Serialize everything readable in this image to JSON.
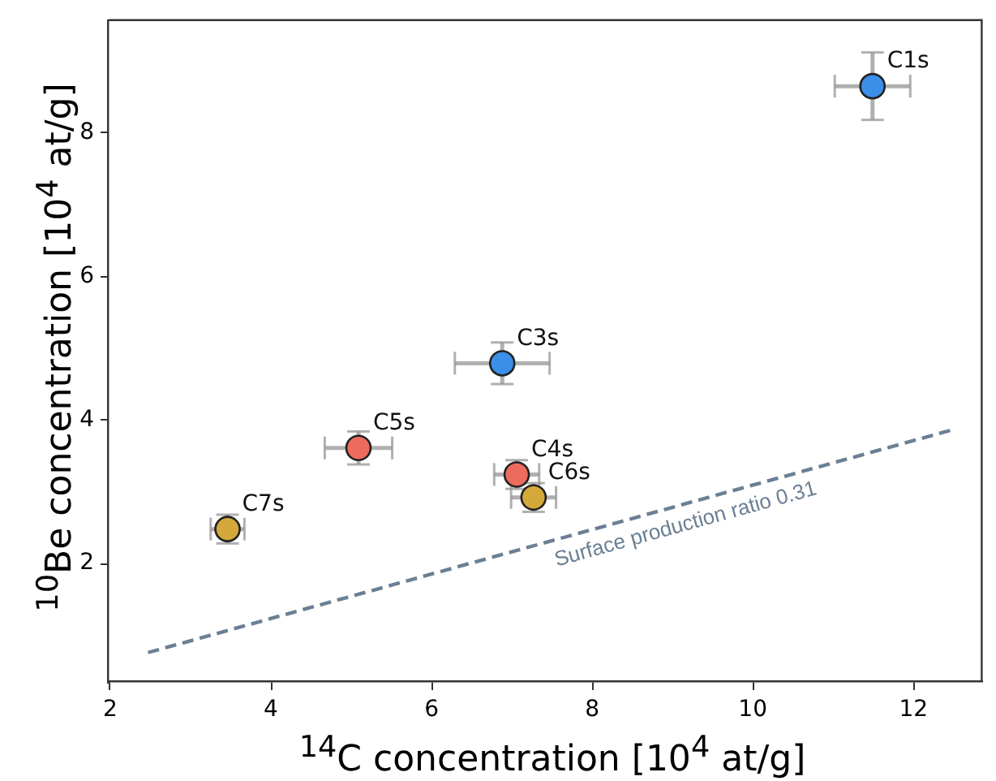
{
  "chart_data": {
    "type": "scatter",
    "xlabel": "$^{14}$C concentration [10$^{4}$ at/g]",
    "ylabel": "$^{10}$Be concentration [10$^{4}$ at/g]",
    "xlim": [
      1.98,
      12.85
    ],
    "ylim": [
      0.35,
      9.57
    ],
    "xticks": [
      2,
      4,
      6,
      8,
      10,
      12
    ],
    "yticks": [
      2,
      4,
      6,
      8
    ],
    "grid": false,
    "legend": false,
    "marker": "circle",
    "series": [
      {
        "name": "C1s",
        "color": "#3b8fe8",
        "x": [
          11.49
        ],
        "values": [
          8.65
        ],
        "errors": [
          0.47
        ],
        "xerrors": [
          0.47
        ]
      },
      {
        "name": "C3s",
        "color": "#3b8fe8",
        "x": [
          6.88
        ],
        "values": [
          4.79
        ],
        "errors": [
          0.29
        ],
        "xerrors": [
          0.59
        ]
      },
      {
        "name": "C5s",
        "color": "#ec6b5e",
        "x": [
          5.09
        ],
        "values": [
          3.61
        ],
        "errors": [
          0.23
        ],
        "xerrors": [
          0.42
        ]
      },
      {
        "name": "C4s",
        "color": "#ec6b5e",
        "x": [
          7.06
        ],
        "values": [
          3.24
        ],
        "errors": [
          0.2
        ],
        "xerrors": [
          0.28
        ]
      },
      {
        "name": "C6s",
        "color": "#d4a93a",
        "x": [
          7.27
        ],
        "values": [
          2.92
        ],
        "errors": [
          0.2
        ],
        "xerrors": [
          0.28
        ]
      },
      {
        "name": "C7s",
        "color": "#d4a93a",
        "x": [
          3.46
        ],
        "values": [
          2.48
        ],
        "errors": [
          0.2
        ],
        "xerrors": [
          0.21
        ]
      },
      {
        "name": "Surface production ratio 0.31",
        "type": "line",
        "color": "#6b7f94",
        "x": [
          2.47,
          12.51
        ],
        "values": [
          0.76,
          3.87
        ],
        "line_style": "dashed",
        "marker": "none"
      }
    ]
  }
}
